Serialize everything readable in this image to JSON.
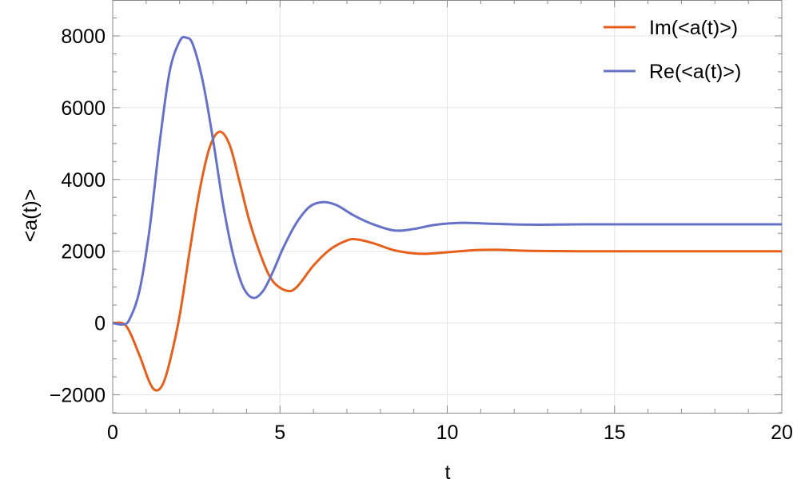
{
  "chart_data": {
    "type": "line",
    "title": "",
    "xlabel": "t",
    "ylabel": "<a(t)>",
    "xlim": [
      0,
      20
    ],
    "ylim": [
      -2500,
      9000
    ],
    "xticks": [
      0,
      5,
      10,
      15,
      20
    ],
    "yticks": [
      -2000,
      0,
      2000,
      4000,
      6000,
      8000
    ],
    "xtick_labels": [
      "0",
      "5",
      "10",
      "15",
      "20"
    ],
    "ytick_labels": [
      "−2000",
      "0",
      "2000",
      "4000",
      "6000",
      "8000"
    ],
    "grid": true,
    "legend_position": "top-right",
    "series": [
      {
        "name": "Im(<a(t)>)",
        "color": "#E6601C",
        "x": [
          0,
          0.4,
          0.8,
          1.1,
          1.3,
          1.5,
          1.7,
          2.0,
          2.3,
          2.6,
          2.9,
          3.2,
          3.5,
          3.8,
          4.1,
          4.5,
          4.8,
          5.2,
          5.5,
          6.0,
          6.5,
          7.0,
          7.3,
          7.8,
          8.4,
          9.0,
          9.4,
          10.0,
          10.8,
          11.5,
          12.5,
          14,
          16,
          20
        ],
        "y": [
          0,
          -80,
          -900,
          -1650,
          -1880,
          -1700,
          -1100,
          200,
          2000,
          3700,
          4900,
          5330,
          4950,
          3900,
          2800,
          1700,
          1150,
          900,
          1000,
          1600,
          2050,
          2300,
          2330,
          2220,
          2030,
          1940,
          1930,
          1970,
          2030,
          2040,
          2010,
          2000,
          2000,
          2000
        ]
      },
      {
        "name": "Re(<a(t)>)",
        "color": "#6672C8",
        "x": [
          0,
          0.3,
          0.5,
          0.8,
          1.1,
          1.4,
          1.7,
          2.0,
          2.2,
          2.4,
          2.7,
          3.0,
          3.3,
          3.6,
          3.9,
          4.2,
          4.5,
          4.8,
          5.1,
          5.5,
          5.9,
          6.3,
          6.7,
          7.2,
          7.7,
          8.4,
          9.0,
          9.6,
          10.4,
          11.2,
          12.5,
          14,
          16,
          20
        ],
        "y": [
          0,
          -40,
          100,
          900,
          2600,
          5000,
          7000,
          7850,
          7950,
          7750,
          6700,
          5100,
          3300,
          1900,
          1000,
          700,
          900,
          1450,
          2100,
          2800,
          3250,
          3370,
          3280,
          3000,
          2780,
          2580,
          2620,
          2730,
          2790,
          2770,
          2740,
          2750,
          2750,
          2750
        ]
      }
    ]
  }
}
